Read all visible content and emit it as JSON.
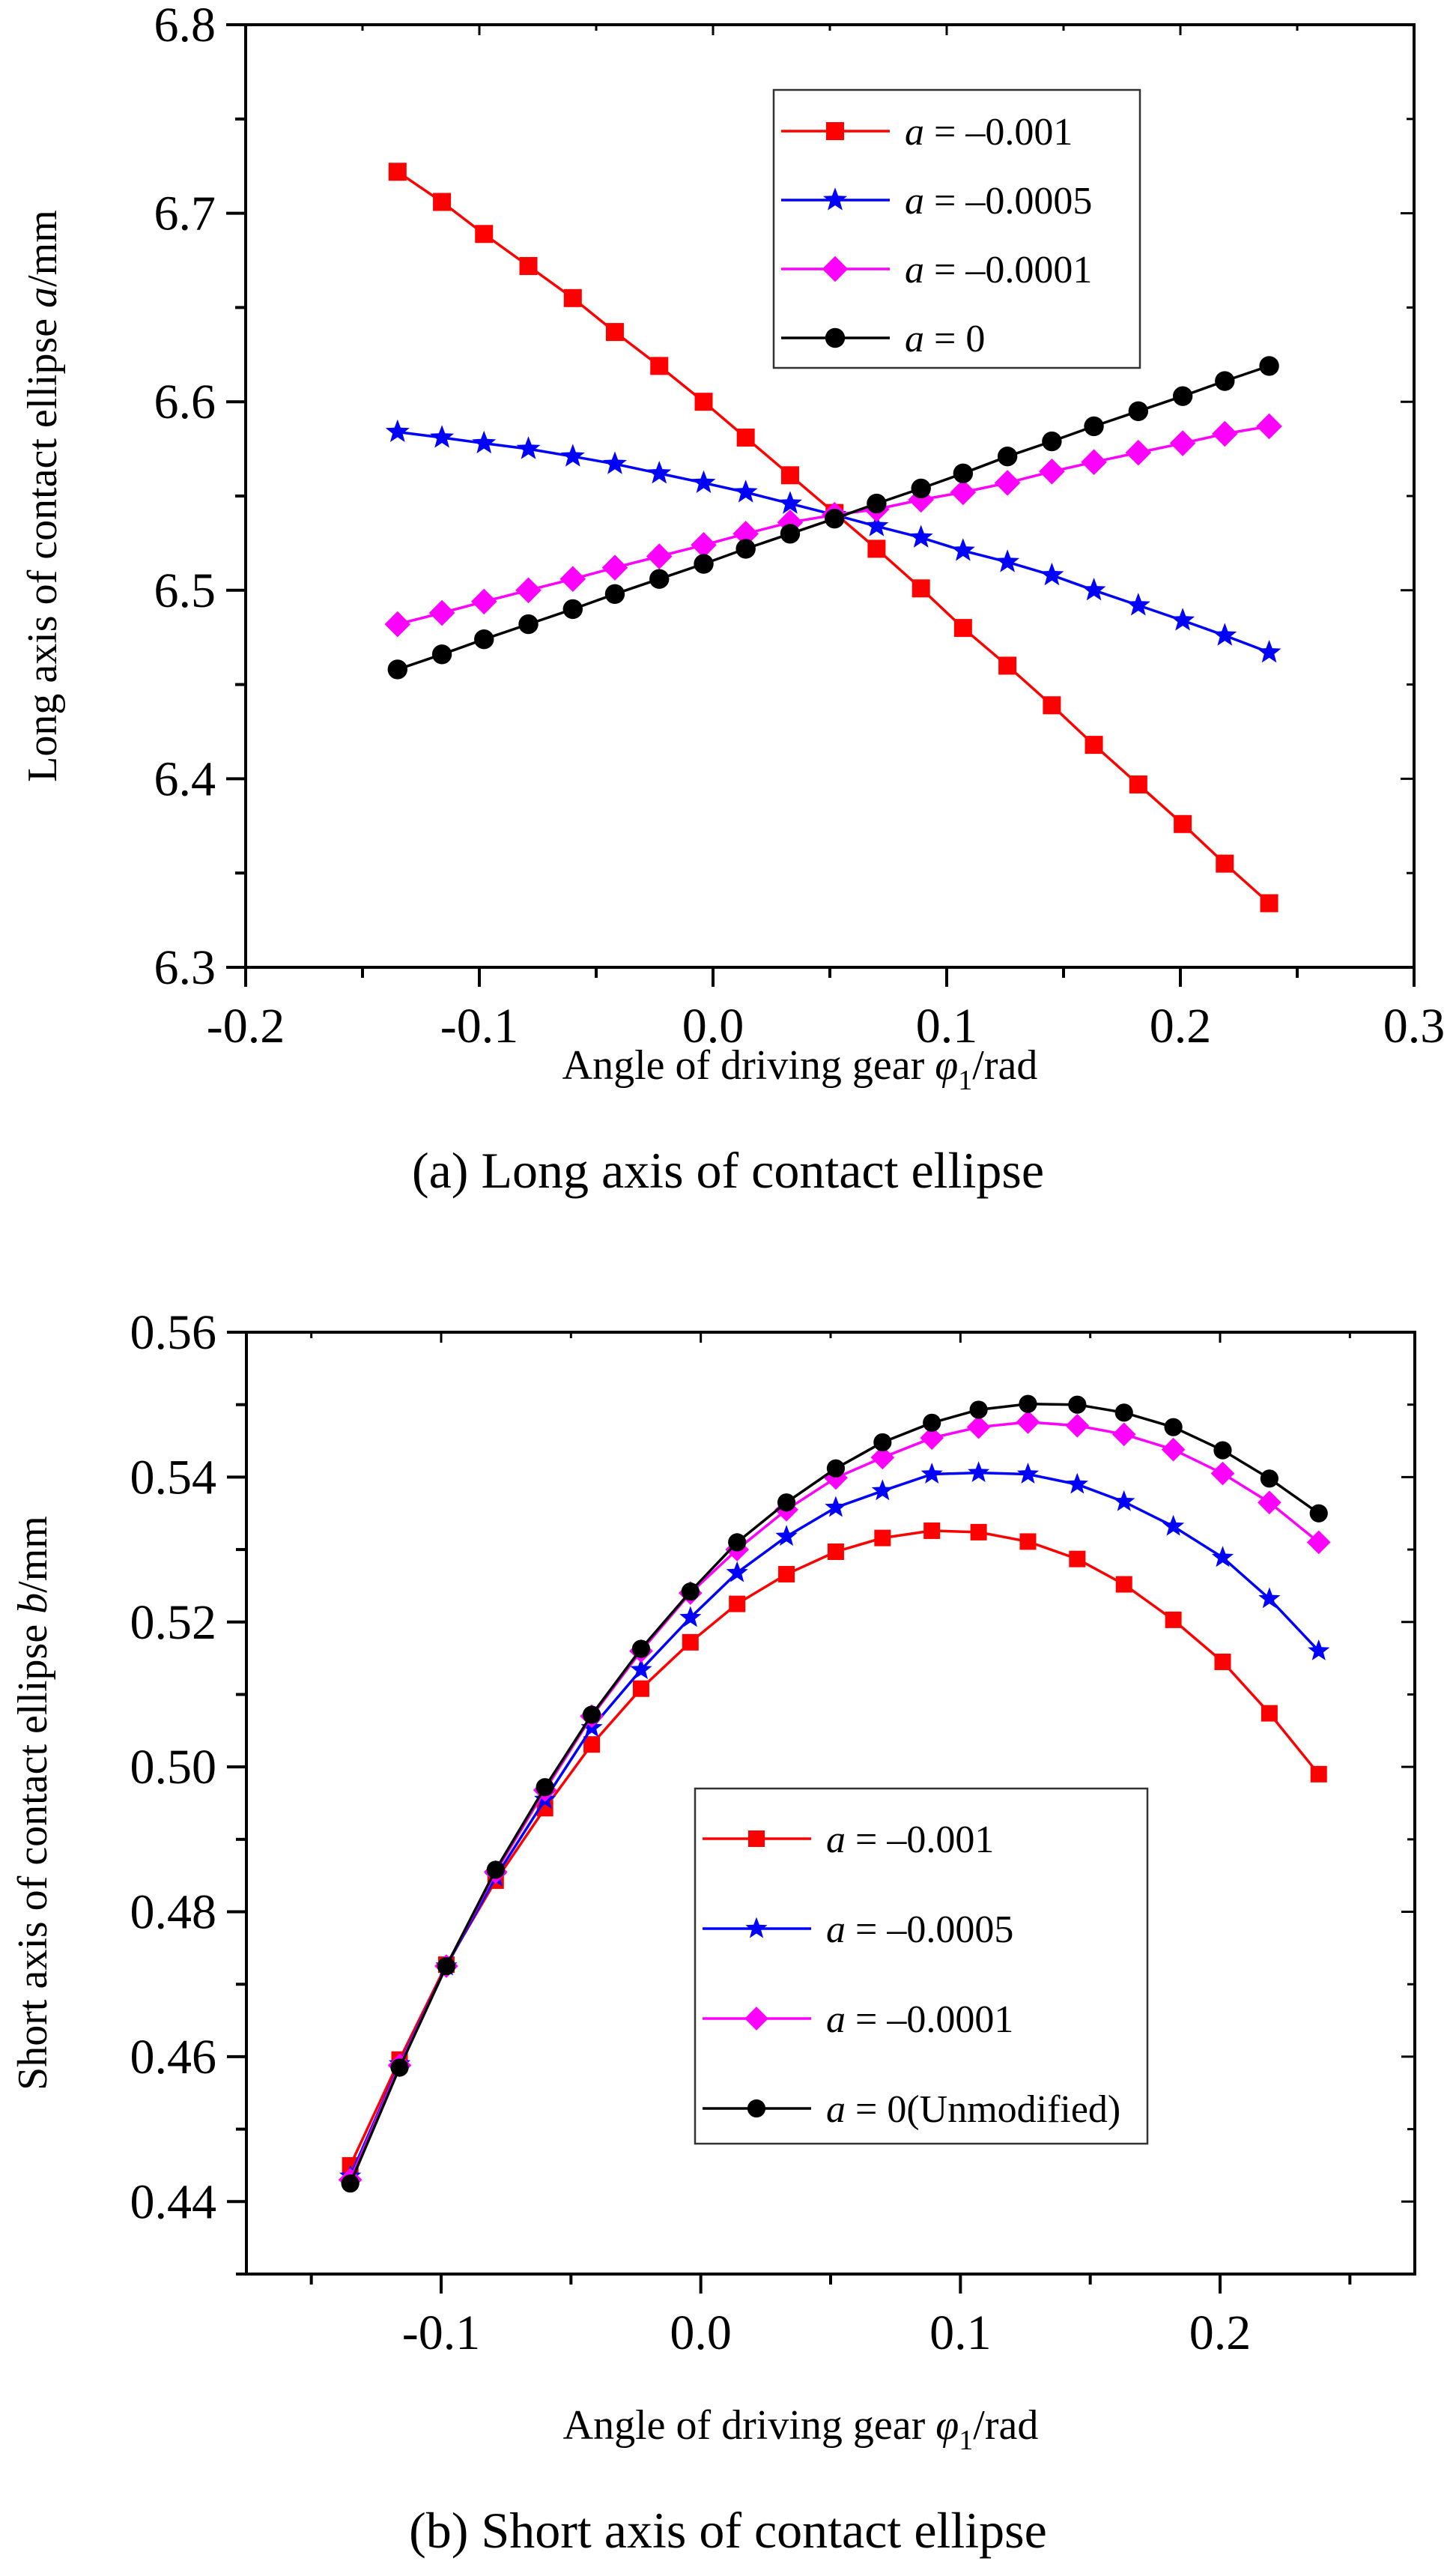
{
  "chart_data": [
    {
      "id": "a",
      "type": "line",
      "caption": "(a) Long axis of contact ellipse",
      "xlabel": "Angle of driving gear φ1/rad",
      "xlabel_parts": {
        "pre": "Angle of driving gear ",
        "sym": "φ",
        "sub": "1",
        "post": "/rad"
      },
      "ylabel": "Long axis of contact ellipse a/mm",
      "ylabel_parts": {
        "pre": "Long axis of contact ellipse ",
        "sym": "a",
        "post": "/mm"
      },
      "xlim": [
        -0.2,
        0.3
      ],
      "ylim": [
        6.3,
        6.8
      ],
      "xticks": [
        -0.2,
        -0.1,
        0.0,
        0.1,
        0.2,
        0.3
      ],
      "xtick_labels": [
        "-0.2",
        "-0.1",
        "0.0",
        "0.1",
        "0.2",
        "0.3"
      ],
      "yticks": [
        6.3,
        6.4,
        6.5,
        6.6,
        6.7,
        6.8
      ],
      "ytick_labels": [
        "6.3",
        "6.4",
        "6.5",
        "6.6",
        "6.7",
        "6.8"
      ],
      "grid": false,
      "legend_position": "top-center",
      "x": [
        -0.135,
        -0.116,
        -0.098,
        -0.079,
        -0.06,
        -0.042,
        -0.023,
        -0.004,
        0.014,
        0.033,
        0.052,
        0.07,
        0.089,
        0.107,
        0.126,
        0.145,
        0.163,
        0.182,
        0.201,
        0.219,
        0.238
      ],
      "series": [
        {
          "name": "a = –0.001",
          "legend": {
            "sym": "a",
            "rest": " = –0.001"
          },
          "color": "#ff0000",
          "marker": "square",
          "values": [
            6.722,
            6.706,
            6.689,
            6.672,
            6.655,
            6.637,
            6.619,
            6.6,
            6.581,
            6.561,
            6.541,
            6.522,
            6.501,
            6.48,
            6.46,
            6.439,
            6.418,
            6.397,
            6.376,
            6.355,
            6.334
          ]
        },
        {
          "name": "a = –0.0005",
          "legend": {
            "sym": "a",
            "rest": " = –0.0005"
          },
          "color": "#0000ff",
          "marker": "star",
          "values": [
            6.584,
            6.581,
            6.578,
            6.575,
            6.571,
            6.567,
            6.562,
            6.557,
            6.552,
            6.546,
            6.54,
            6.534,
            6.528,
            6.521,
            6.515,
            6.508,
            6.5,
            6.492,
            6.484,
            6.476,
            6.467
          ]
        },
        {
          "name": "a = –0.0001",
          "legend": {
            "sym": "a",
            "rest": " = –0.0001"
          },
          "color": "#ff00ff",
          "marker": "diamond",
          "values": [
            6.482,
            6.488,
            6.494,
            6.5,
            6.506,
            6.512,
            6.518,
            6.524,
            6.53,
            6.536,
            6.54,
            6.543,
            6.548,
            6.552,
            6.557,
            6.563,
            6.568,
            6.573,
            6.578,
            6.583,
            6.587
          ]
        },
        {
          "name": "a = 0",
          "legend": {
            "sym": "a",
            "rest": " = 0"
          },
          "color": "#000000",
          "marker": "circle",
          "values": [
            6.458,
            6.466,
            6.474,
            6.482,
            6.49,
            6.498,
            6.506,
            6.514,
            6.522,
            6.53,
            6.538,
            6.546,
            6.554,
            6.562,
            6.571,
            6.579,
            6.587,
            6.595,
            6.603,
            6.611,
            6.619
          ]
        }
      ]
    },
    {
      "id": "b",
      "type": "line",
      "caption": "(b) Short axis of contact ellipse",
      "xlabel": "Angle of driving gear φ1/rad",
      "xlabel_parts": {
        "pre": "Angle of driving gear ",
        "sym": "φ",
        "sub": "1",
        "post": "/rad"
      },
      "ylabel": "Short axis of contact ellipse b/mm",
      "ylabel_parts": {
        "pre": "Short axis of contact ellipse ",
        "sym": "b",
        "post": "/mm"
      },
      "xlim": [
        -0.175,
        0.275
      ],
      "ylim": [
        0.43,
        0.56
      ],
      "xticks": [
        -0.1,
        0.0,
        0.1,
        0.2
      ],
      "xtick_labels": [
        "-0.1",
        "0.0",
        "0.1",
        "0.2"
      ],
      "yticks": [
        0.44,
        0.46,
        0.48,
        0.5,
        0.52,
        0.54,
        0.56
      ],
      "ytick_labels": [
        "0.44",
        "0.46",
        "0.48",
        "0.50",
        "0.52",
        "0.54",
        "0.56"
      ],
      "grid": false,
      "legend_position": "center-right",
      "x": [
        -0.135,
        -0.116,
        -0.098,
        -0.079,
        -0.06,
        -0.042,
        -0.023,
        -0.004,
        0.014,
        0.033,
        0.052,
        0.07,
        0.089,
        0.107,
        0.126,
        0.145,
        0.163,
        0.182,
        0.201,
        0.219,
        0.238
      ],
      "series": [
        {
          "name": "a = –0.001",
          "legend": {
            "sym": "a",
            "rest": " = –0.001"
          },
          "color": "#ff0000",
          "marker": "square",
          "values": [
            0.445,
            0.4596,
            0.4727,
            0.4843,
            0.4943,
            0.5031,
            0.5108,
            0.5172,
            0.5225,
            0.5266,
            0.5297,
            0.5316,
            0.5326,
            0.5324,
            0.5311,
            0.5287,
            0.5252,
            0.5203,
            0.5145,
            0.5074,
            0.499
          ]
        },
        {
          "name": "a = –0.0005",
          "legend": {
            "sym": "a",
            "rest": " = –0.0005"
          },
          "color": "#0000ff",
          "marker": "star",
          "values": [
            0.4435,
            0.459,
            0.4725,
            0.4848,
            0.4955,
            0.5054,
            0.5134,
            0.5206,
            0.5268,
            0.5318,
            0.5358,
            0.5381,
            0.5404,
            0.5406,
            0.5404,
            0.539,
            0.5366,
            0.5332,
            0.5289,
            0.5232,
            0.516
          ]
        },
        {
          "name": "a = –0.0001",
          "legend": {
            "sym": "a",
            "rest": " = –0.0001"
          },
          "color": "#ff00ff",
          "marker": "diamond",
          "values": [
            0.443,
            0.4588,
            0.4725,
            0.4855,
            0.4968,
            0.507,
            0.516,
            0.524,
            0.53,
            0.5355,
            0.5399,
            0.5427,
            0.5454,
            0.5469,
            0.5476,
            0.5471,
            0.5459,
            0.5438,
            0.5405,
            0.5365,
            0.531
          ]
        },
        {
          "name": "a = 0(Unmodified)",
          "legend": {
            "sym": "a",
            "rest": " = 0(Unmodified)"
          },
          "color": "#000000",
          "marker": "circle",
          "values": [
            0.4425,
            0.4585,
            0.4725,
            0.4858,
            0.4972,
            0.5072,
            0.5163,
            0.5242,
            0.531,
            0.5365,
            0.5412,
            0.5448,
            0.5475,
            0.5493,
            0.5501,
            0.55,
            0.5489,
            0.5469,
            0.5437,
            0.5398,
            0.535
          ]
        }
      ]
    }
  ]
}
